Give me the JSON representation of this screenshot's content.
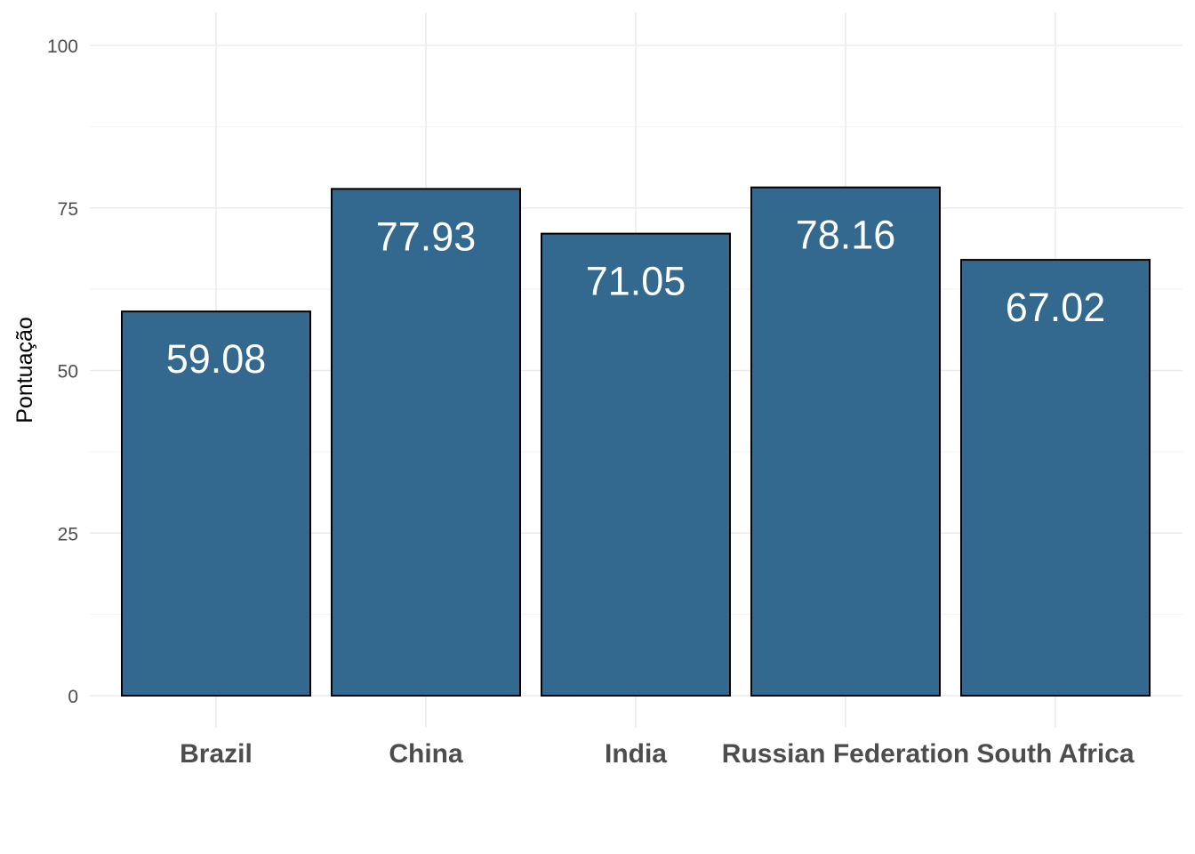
{
  "chart_data": {
    "type": "bar",
    "categories": [
      "Brazil",
      "China",
      "India",
      "Russian Federation",
      "South Africa"
    ],
    "values": [
      59.08,
      77.93,
      71.05,
      78.16,
      67.02
    ],
    "data_labels": [
      "59.08",
      "77.93",
      "71.05",
      "78.16",
      "67.02"
    ],
    "title": "",
    "xlabel": "",
    "ylabel": "Pontuação",
    "ylim": [
      0,
      100
    ],
    "yticks": [
      0,
      25,
      50,
      75,
      100
    ],
    "grid": true,
    "legend": "none",
    "bar_color": "#33698f",
    "bar_outline": "#000000",
    "grid_color": "#ebebeb"
  }
}
